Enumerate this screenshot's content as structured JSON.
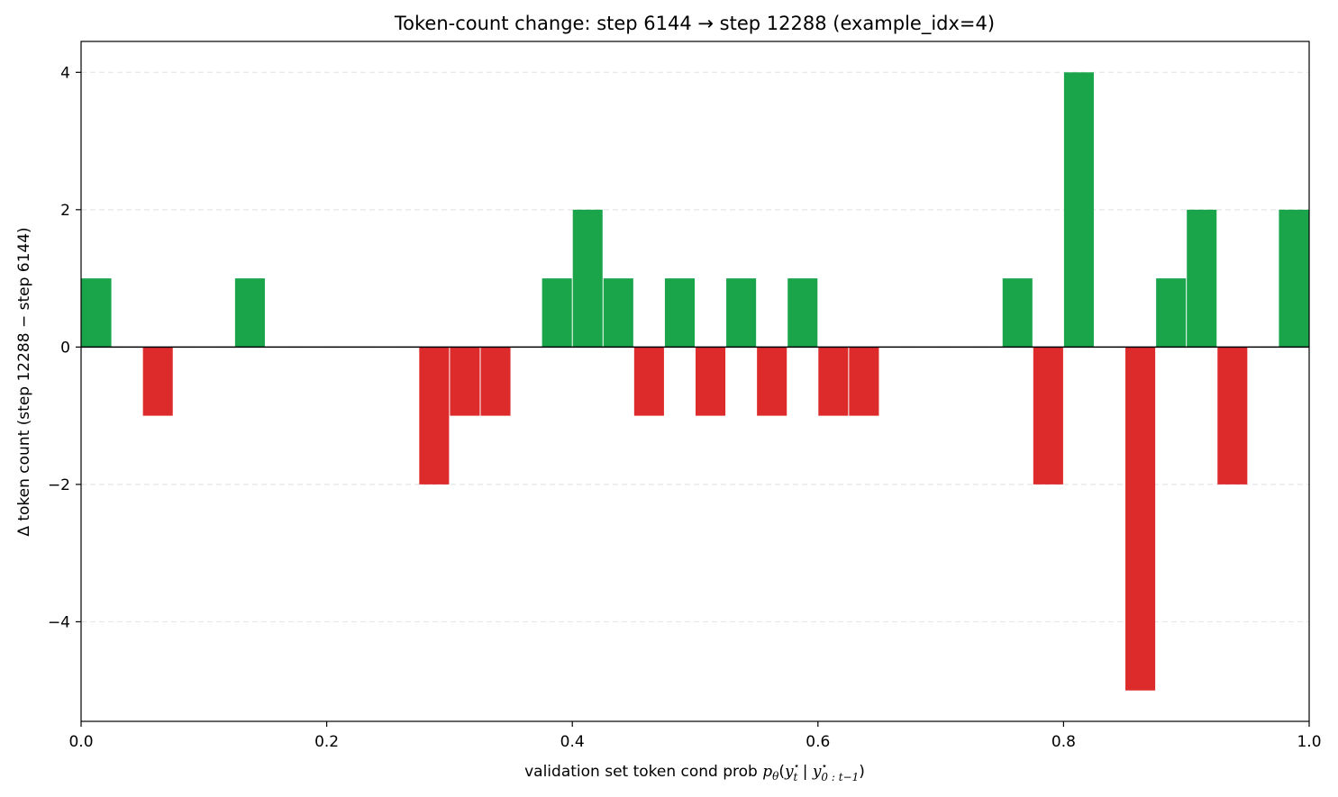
{
  "chart_data": {
    "type": "bar",
    "title": "Token-count change: step 6144 → step 12288 (example_idx=4)",
    "xlabel_text": "validation set token cond prob ",
    "xlabel_math": {
      "p": "p",
      "theta": "θ",
      "open": "(",
      "y": "y",
      "star": "⋆",
      "t": "t",
      "bar": " | ",
      "sub_range": "0 : t−1",
      "close": ")"
    },
    "ylabel": "Δ token count (step 12288 − step 6144)",
    "bin_width": 0.025,
    "bin_starts": [
      0.0,
      0.05,
      0.125,
      0.275,
      0.3,
      0.325,
      0.375,
      0.4,
      0.425,
      0.45,
      0.475,
      0.5,
      0.525,
      0.55,
      0.575,
      0.6,
      0.625,
      0.75,
      0.775,
      0.8,
      0.85,
      0.875,
      0.9,
      0.925,
      0.975
    ],
    "values": [
      1,
      -1,
      1,
      -2,
      -1,
      -1,
      1,
      2,
      1,
      -1,
      1,
      -1,
      1,
      -1,
      1,
      -1,
      -1,
      1,
      -2,
      4,
      -5,
      1,
      2,
      -2,
      2
    ],
    "xlim": [
      0.0,
      1.0
    ],
    "ylim": [
      -5.45,
      4.45
    ],
    "xticks": [
      0.0,
      0.2,
      0.4,
      0.6,
      0.8,
      1.0
    ],
    "xtick_labels": [
      "0.0",
      "0.2",
      "0.4",
      "0.6",
      "0.8",
      "1.0"
    ],
    "yticks": [
      -4,
      -2,
      0,
      2,
      4
    ],
    "ytick_labels": [
      "−4",
      "−2",
      "0",
      "2",
      "4"
    ],
    "grid": "horizontal dashed",
    "colors": {
      "positive": "#1aa54b",
      "negative": "#dd2a2a",
      "zero_line": "#000000",
      "grid": "#e6e6e6"
    }
  }
}
